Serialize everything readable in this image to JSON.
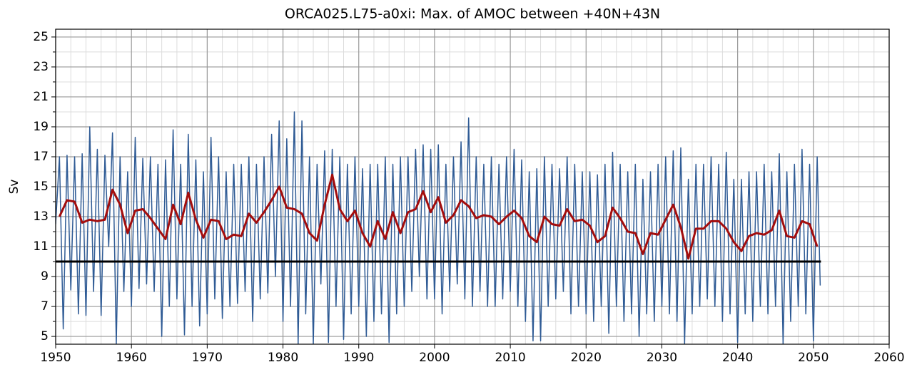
{
  "chart_data": {
    "type": "line",
    "title": "ORCA025.L75-a0xi: Max. of AMOC between +40N+43N",
    "y_label": "Sv",
    "xlim": [
      1950,
      2060
    ],
    "xticks": [
      1950,
      1960,
      1970,
      1980,
      1990,
      2000,
      2010,
      2020,
      2030,
      2040,
      2050,
      2060
    ],
    "ylim": [
      4.48,
      25.52
    ],
    "yticks": [
      5,
      7,
      9,
      11,
      13,
      15,
      17,
      19,
      21,
      23,
      25
    ],
    "grid": true,
    "minor_grid": true,
    "series": [
      {
        "color": "#2f5b95",
        "width": 1.5,
        "x": [
          1950,
          1950.5,
          1951,
          1951.5,
          1952,
          1952.5,
          1953,
          1953.5,
          1954,
          1954.5,
          1955,
          1955.5,
          1956,
          1956.5,
          1957,
          1957.5,
          1958,
          1958.5,
          1959,
          1959.5,
          1960,
          1960.5,
          1961,
          1961.5,
          1962,
          1962.5,
          1963,
          1963.5,
          1964,
          1964.5,
          1965,
          1965.5,
          1966,
          1966.5,
          1967,
          1967.5,
          1968,
          1968.5,
          1969,
          1969.5,
          1970,
          1970.5,
          1971,
          1971.5,
          1972,
          1972.5,
          1973,
          1973.5,
          1974,
          1974.5,
          1975,
          1975.5,
          1976,
          1976.5,
          1977,
          1977.5,
          1978,
          1978.5,
          1979,
          1979.5,
          1980,
          1980.5,
          1981,
          1981.5,
          1982,
          1982.5,
          1983,
          1983.5,
          1984,
          1984.5,
          1985,
          1985.5,
          1986,
          1986.5,
          1987,
          1987.5,
          1988,
          1988.5,
          1989,
          1989.5,
          1990,
          1990.5,
          1991,
          1991.5,
          1992,
          1992.5,
          1993,
          1993.5,
          1994,
          1994.5,
          1995,
          1995.5,
          1996,
          1996.5,
          1997,
          1997.5,
          1998,
          1998.5,
          1999,
          1999.5,
          2000,
          2000.5,
          2001,
          2001.5,
          2002,
          2002.5,
          2003,
          2003.5,
          2004,
          2004.5,
          2005,
          2005.5,
          2006,
          2006.5,
          2007,
          2007.5,
          2008,
          2008.5,
          2009,
          2009.5,
          2010,
          2010.5,
          2011,
          2011.5,
          2012,
          2012.5,
          2013,
          2013.5,
          2014,
          2014.5,
          2015,
          2015.5,
          2016,
          2016.5,
          2017,
          2017.5,
          2018,
          2018.5,
          2019,
          2019.5,
          2020,
          2020.5,
          2021,
          2021.5,
          2022,
          2022.5,
          2023,
          2023.5,
          2024,
          2024.5,
          2025,
          2025.5,
          2026,
          2026.5,
          2027,
          2027.5,
          2028,
          2028.5,
          2029,
          2029.5,
          2030,
          2030.5,
          2031,
          2031.5,
          2032,
          2032.5,
          2033,
          2033.5,
          2034,
          2034.5,
          2035,
          2035.5,
          2036,
          2036.5,
          2037,
          2037.5,
          2038,
          2038.5,
          2039,
          2039.5,
          2040,
          2040.5,
          2041,
          2041.5,
          2042,
          2042.5,
          2043,
          2043.5,
          2044,
          2044.5,
          2045,
          2045.5,
          2046,
          2046.5,
          2047,
          2047.5,
          2048,
          2048.5,
          2049,
          2049.5,
          2050,
          2050.5,
          2050.9
        ],
        "values": [
          12.5,
          17.0,
          5.5,
          17.1,
          8.1,
          17.0,
          6.5,
          17.2,
          6.4,
          19.0,
          8.0,
          17.5,
          6.4,
          17.1,
          11.0,
          18.6,
          4.5,
          17.0,
          8.0,
          16.0,
          7.0,
          18.3,
          8.2,
          16.9,
          8.5,
          17.0,
          8.0,
          16.5,
          5.0,
          16.8,
          7.0,
          18.8,
          7.5,
          16.5,
          5.1,
          18.5,
          7.0,
          16.8,
          5.7,
          16.0,
          6.5,
          18.3,
          7.5,
          17.0,
          6.2,
          16.0,
          7.0,
          16.5,
          7.2,
          16.5,
          8.0,
          17.0,
          6.0,
          16.5,
          7.5,
          17.0,
          7.9,
          18.5,
          9.0,
          19.4,
          6.0,
          18.2,
          7.0,
          20.0,
          4.5,
          19.4,
          6.5,
          17.0,
          4.5,
          16.5,
          8.5,
          17.4,
          4.6,
          17.5,
          7.0,
          17.0,
          4.8,
          16.5,
          6.5,
          17.0,
          7.0,
          16.2,
          5.0,
          16.5,
          6.0,
          16.5,
          6.5,
          17.0,
          4.6,
          16.5,
          6.5,
          17.0,
          7.0,
          17.0,
          8.0,
          17.5,
          9.0,
          17.8,
          7.5,
          17.5,
          7.5,
          17.8,
          6.5,
          16.5,
          8.0,
          17.0,
          8.5,
          18.0,
          7.5,
          19.6,
          7.0,
          17.0,
          8.0,
          16.5,
          7.0,
          17.0,
          7.0,
          16.5,
          7.5,
          17.0,
          8.0,
          17.5,
          7.0,
          16.8,
          6.0,
          16.0,
          4.7,
          16.2,
          4.7,
          17.0,
          7.0,
          16.5,
          7.5,
          16.2,
          8.0,
          17.0,
          6.5,
          16.5,
          7.0,
          16.0,
          6.5,
          16.0,
          6.0,
          15.8,
          7.0,
          16.5,
          5.2,
          17.3,
          7.0,
          16.5,
          6.0,
          16.0,
          6.5,
          16.5,
          5.0,
          15.5,
          6.5,
          16.0,
          6.0,
          16.5,
          7.0,
          17.0,
          6.5,
          17.4,
          6.0,
          17.6,
          4.5,
          15.5,
          6.5,
          16.5,
          7.0,
          16.5,
          7.5,
          17.0,
          7.0,
          16.5,
          6.0,
          17.3,
          6.5,
          15.5,
          4.6,
          15.5,
          6.5,
          16.0,
          6.0,
          16.0,
          7.0,
          16.5,
          6.5,
          16.0,
          7.0,
          17.2,
          4.5,
          16.0,
          6.0,
          16.5,
          7.0,
          17.5,
          6.5,
          16.5,
          4.7,
          17.0,
          8.4
        ]
      },
      {
        "color": "#a30d0d",
        "width": 3,
        "x": [
          1950.5,
          1951.5,
          1952.5,
          1953.5,
          1954.5,
          1955.5,
          1956.5,
          1957.5,
          1958.5,
          1959.5,
          1960.5,
          1961.5,
          1962.5,
          1963.5,
          1964.5,
          1965.5,
          1966.5,
          1967.5,
          1968.5,
          1969.5,
          1970.5,
          1971.5,
          1972.5,
          1973.5,
          1974.5,
          1975.5,
          1976.5,
          1977.5,
          1978.5,
          1979.5,
          1980.5,
          1981.5,
          1982.5,
          1983.5,
          1984.5,
          1985.5,
          1986.5,
          1987.5,
          1988.5,
          1989.5,
          1990.5,
          1991.5,
          1992.5,
          1993.5,
          1994.5,
          1995.5,
          1996.5,
          1997.5,
          1998.5,
          1999.5,
          2000.5,
          2001.5,
          2002.5,
          2003.5,
          2004.5,
          2005.5,
          2006.5,
          2007.5,
          2008.5,
          2009.5,
          2010.5,
          2011.5,
          2012.5,
          2013.5,
          2014.5,
          2015.5,
          2016.5,
          2017.5,
          2018.5,
          2019.5,
          2020.5,
          2021.5,
          2022.5,
          2023.5,
          2024.5,
          2025.5,
          2026.5,
          2027.5,
          2028.5,
          2029.5,
          2030.5,
          2031.5,
          2032.5,
          2033.5,
          2034.5,
          2035.5,
          2036.5,
          2037.5,
          2038.5,
          2039.5,
          2040.5,
          2041.5,
          2042.5,
          2043.5,
          2044.5,
          2045.5,
          2046.5,
          2047.5,
          2048.5,
          2049.5,
          2050.5
        ],
        "values": [
          13.0,
          14.1,
          14.0,
          12.6,
          12.8,
          12.7,
          12.8,
          14.8,
          13.8,
          11.9,
          13.4,
          13.5,
          12.9,
          12.2,
          11.5,
          13.8,
          12.5,
          14.6,
          12.8,
          11.6,
          12.8,
          12.7,
          11.5,
          11.8,
          11.7,
          13.2,
          12.6,
          13.3,
          14.1,
          15.0,
          13.6,
          13.5,
          13.2,
          11.9,
          11.4,
          13.8,
          15.8,
          13.5,
          12.7,
          13.4,
          11.9,
          11.0,
          12.7,
          11.5,
          13.3,
          11.9,
          13.3,
          13.5,
          14.7,
          13.3,
          14.3,
          12.6,
          13.1,
          14.1,
          13.7,
          12.9,
          13.1,
          13.0,
          12.5,
          13.0,
          13.4,
          12.9,
          11.7,
          11.3,
          13.0,
          12.5,
          12.4,
          13.5,
          12.7,
          12.8,
          12.4,
          11.3,
          11.7,
          13.6,
          12.9,
          12.0,
          11.9,
          10.5,
          11.9,
          11.8,
          12.8,
          13.8,
          12.3,
          10.2,
          12.2,
          12.2,
          12.7,
          12.7,
          12.2,
          11.3,
          10.7,
          11.7,
          11.9,
          11.8,
          12.1,
          13.4,
          11.7,
          11.6,
          12.7,
          12.5,
          11.0
        ]
      },
      {
        "color": "#000000",
        "width": 3,
        "x": [
          1950,
          2051
        ],
        "values": [
          10,
          10
        ]
      }
    ]
  }
}
